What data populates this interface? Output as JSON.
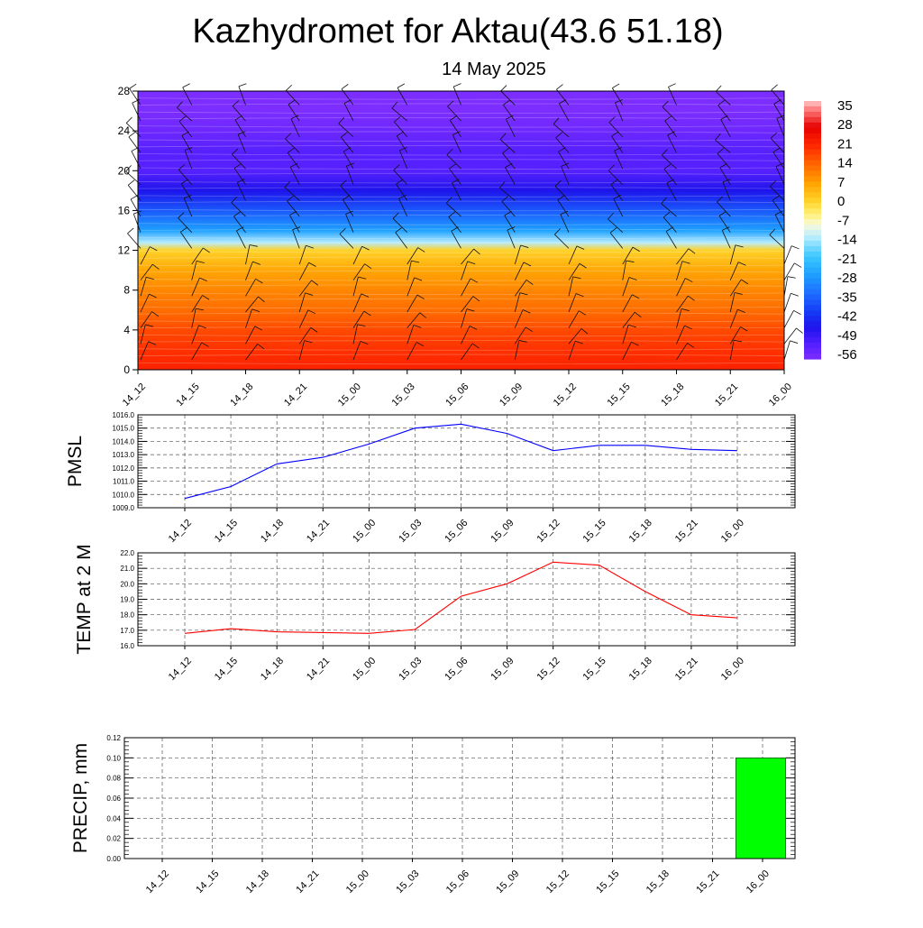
{
  "title": "Kazhydromet for Aktau(43.6 51.18)",
  "subtitle": "14 May 2025",
  "time_labels": [
    "14_12",
    "14_15",
    "14_18",
    "14_21",
    "15_00",
    "15_03",
    "15_06",
    "15_09",
    "15_12",
    "15_15",
    "15_18",
    "15_21",
    "16_00"
  ],
  "chart_data": [
    {
      "type": "heatmap",
      "title": "",
      "xlabel": "",
      "ylabel": "",
      "x": [
        "14_12",
        "14_15",
        "14_18",
        "14_21",
        "15_00",
        "15_03",
        "15_06",
        "15_09",
        "15_12",
        "15_15",
        "15_18",
        "15_21",
        "16_00"
      ],
      "y_ticks": [
        0,
        4,
        8,
        12,
        16,
        20,
        24,
        28
      ],
      "ylim": [
        0,
        28
      ],
      "colorbar_ticks": [
        35,
        28,
        21,
        14,
        7,
        0,
        -7,
        -14,
        -21,
        -28,
        -35,
        -42,
        -49,
        -56
      ],
      "colorbar_range": [
        -60,
        38
      ],
      "overlay": "wind barbs",
      "description_profile": {
        "levels": [
          0,
          2,
          4,
          6,
          8,
          10,
          12,
          12.8,
          14,
          16,
          18,
          20,
          22,
          24,
          26,
          28
        ],
        "values": [
          22,
          20,
          17,
          13,
          10,
          6,
          0,
          -14,
          -28,
          -38,
          -48,
          -55,
          -55,
          -58,
          -60,
          -60
        ]
      }
    },
    {
      "type": "line",
      "ylabel": "PMSL",
      "x": [
        "14_12",
        "14_15",
        "14_18",
        "14_21",
        "15_00",
        "15_03",
        "15_06",
        "15_09",
        "15_12",
        "15_15",
        "15_18",
        "15_21",
        "16_00"
      ],
      "series": [
        {
          "values": [
            1009.7,
            1010.6,
            1012.3,
            1012.8,
            1013.8,
            1015.0,
            1015.3,
            1014.6,
            1013.3,
            1013.7,
            1013.7,
            1013.4,
            1013.3
          ],
          "color": "#0000ff"
        }
      ],
      "ylim": [
        1009.0,
        1016.0
      ],
      "y_ticks": [
        "1009.0",
        "1010.0",
        "1011.0",
        "1012.0",
        "1013.0",
        "1014.0",
        "1015.0",
        "1016.0"
      ],
      "grid": true
    },
    {
      "type": "line",
      "ylabel": "TEMP at 2 M",
      "x": [
        "14_12",
        "14_15",
        "14_18",
        "14_21",
        "15_00",
        "15_03",
        "15_06",
        "15_09",
        "15_12",
        "15_15",
        "15_18",
        "15_21",
        "16_00"
      ],
      "series": [
        {
          "values": [
            16.8,
            17.1,
            16.9,
            16.85,
            16.8,
            17.05,
            19.2,
            20.0,
            21.4,
            21.2,
            19.5,
            18.0,
            17.8
          ],
          "color": "#ff0000"
        }
      ],
      "ylim": [
        16.0,
        22.0
      ],
      "y_ticks": [
        "16.0",
        "17.0",
        "18.0",
        "19.0",
        "20.0",
        "21.0",
        "22.0"
      ],
      "grid": true
    },
    {
      "type": "bar",
      "ylabel": "PRECIP, mm",
      "categories": [
        "14_12",
        "14_15",
        "14_18",
        "14_21",
        "15_00",
        "15_03",
        "15_06",
        "15_09",
        "15_12",
        "15_15",
        "15_18",
        "15_21",
        "16_00"
      ],
      "values": [
        0,
        0,
        0,
        0,
        0,
        0,
        0,
        0,
        0,
        0,
        0,
        0,
        0.1
      ],
      "ylim": [
        0.0,
        0.12
      ],
      "y_ticks": [
        "0.00",
        "0.02",
        "0.04",
        "0.06",
        "0.08",
        "0.10",
        "0.12"
      ],
      "bar_color": "#00ff00",
      "grid": true
    }
  ]
}
